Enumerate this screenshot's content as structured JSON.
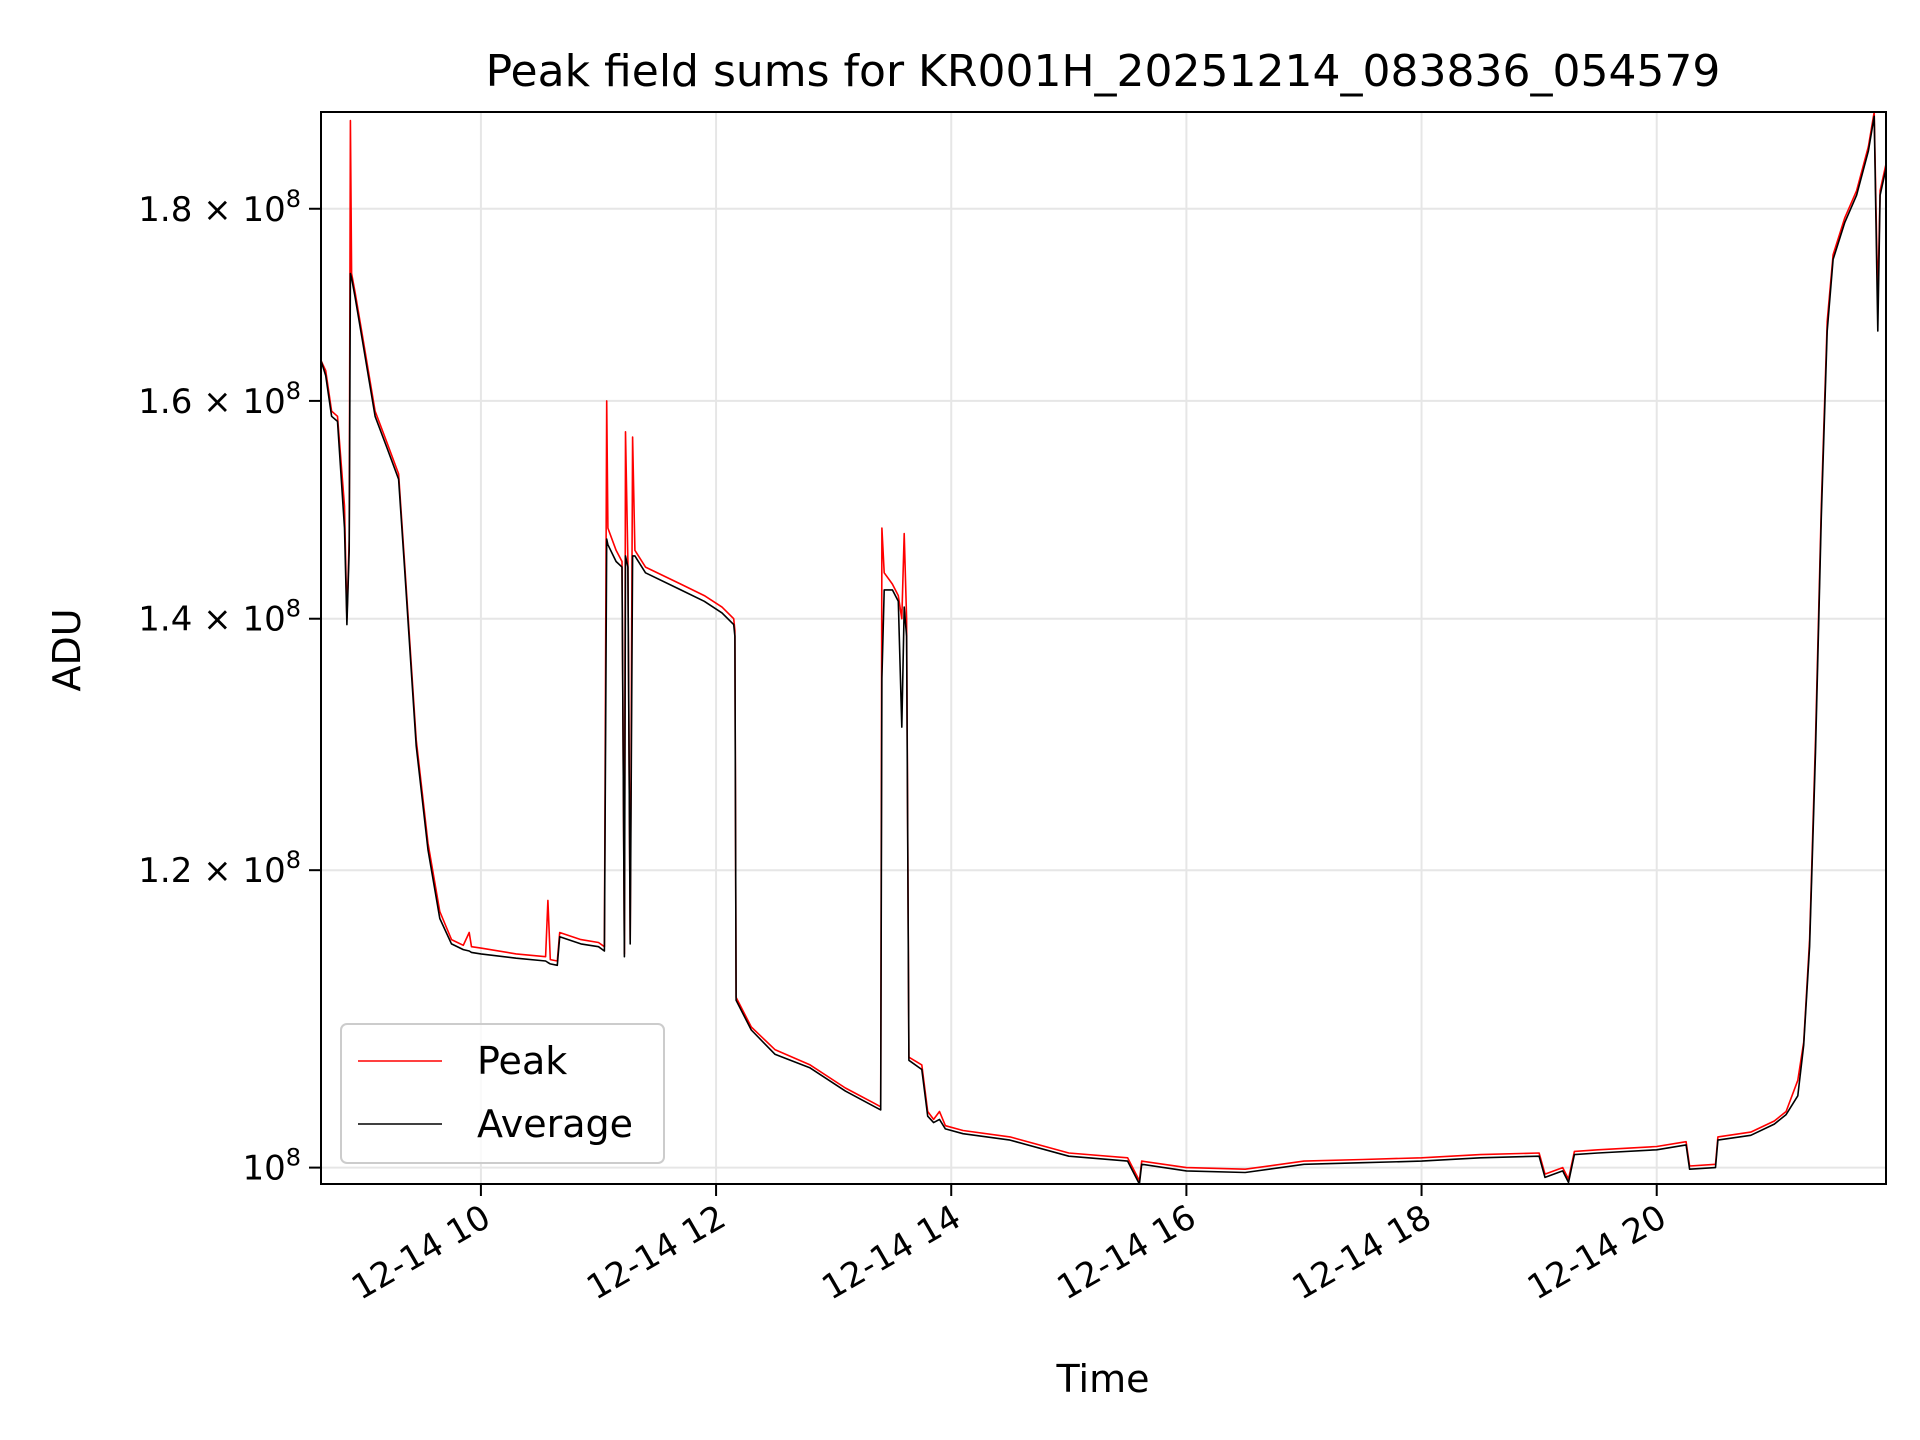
{
  "chart_data": {
    "type": "line",
    "title": "Peak field sums for KR001H_20251214_083836_054579",
    "xlabel": "Time",
    "ylabel": "ADU",
    "grid": true,
    "legend_position": "lower-left",
    "x_unit": "hours since 2025-12-14 00:00",
    "xlim": [
      8.64,
      21.95
    ],
    "y_scale": "log",
    "ylim": [
      99000000,
      191000000
    ],
    "x_ticks": [
      {
        "value": 10,
        "label": "12-14 10"
      },
      {
        "value": 12,
        "label": "12-14 12"
      },
      {
        "value": 14,
        "label": "12-14 14"
      },
      {
        "value": 16,
        "label": "12-14 16"
      },
      {
        "value": 18,
        "label": "12-14 18"
      },
      {
        "value": 20,
        "label": "12-14 20"
      }
    ],
    "y_ticks": [
      {
        "value": 100000000,
        "mant": "10",
        "exp": "8"
      },
      {
        "value": 120000000,
        "mant": "1.2 × 10",
        "exp": "8"
      },
      {
        "value": 140000000,
        "mant": "1.4 × 10",
        "exp": "8"
      },
      {
        "value": 160000000,
        "mant": "1.6 × 10",
        "exp": "8"
      },
      {
        "value": 180000000,
        "mant": "1.8 × 10",
        "exp": "8"
      }
    ],
    "series": [
      {
        "name": "Peak",
        "color": "#ff0000",
        "points": [
          [
            8.64,
            164000000
          ],
          [
            8.68,
            163000000
          ],
          [
            8.73,
            159000000
          ],
          [
            8.78,
            158500000
          ],
          [
            8.84,
            150000000
          ],
          [
            8.86,
            140000000
          ],
          [
            8.88,
            147000000
          ],
          [
            8.89,
            190000000
          ],
          [
            8.9,
            173000000
          ],
          [
            8.93,
            171000000
          ],
          [
            9.0,
            166000000
          ],
          [
            9.1,
            159000000
          ],
          [
            9.2,
            156000000
          ],
          [
            9.3,
            153000000
          ],
          [
            9.35,
            145000000
          ],
          [
            9.45,
            130000000
          ],
          [
            9.55,
            122000000
          ],
          [
            9.65,
            117000000
          ],
          [
            9.75,
            115000000
          ],
          [
            9.85,
            114600000
          ],
          [
            9.9,
            115500000
          ],
          [
            9.92,
            114500000
          ],
          [
            10.0,
            114400000
          ],
          [
            10.3,
            114000000
          ],
          [
            10.55,
            113800000
          ],
          [
            10.57,
            117800000
          ],
          [
            10.59,
            113600000
          ],
          [
            10.65,
            113500000
          ],
          [
            10.67,
            115500000
          ],
          [
            10.85,
            115000000
          ],
          [
            11.0,
            114800000
          ],
          [
            11.05,
            114500000
          ],
          [
            11.07,
            160000000
          ],
          [
            11.08,
            148000000
          ],
          [
            11.15,
            146000000
          ],
          [
            11.2,
            145000000
          ],
          [
            11.22,
            114000000
          ],
          [
            11.23,
            157000000
          ],
          [
            11.25,
            145000000
          ],
          [
            11.27,
            115000000
          ],
          [
            11.29,
            156500000
          ],
          [
            11.31,
            146000000
          ],
          [
            11.4,
            144500000
          ],
          [
            11.7,
            143000000
          ],
          [
            11.9,
            142000000
          ],
          [
            12.05,
            141000000
          ],
          [
            12.15,
            140000000
          ],
          [
            12.16,
            139000000
          ],
          [
            12.17,
            111000000
          ],
          [
            12.3,
            109000000
          ],
          [
            12.5,
            107500000
          ],
          [
            12.8,
            106500000
          ],
          [
            13.1,
            105000000
          ],
          [
            13.35,
            104000000
          ],
          [
            13.4,
            103800000
          ],
          [
            13.41,
            148000000
          ],
          [
            13.43,
            144000000
          ],
          [
            13.5,
            143000000
          ],
          [
            13.55,
            142000000
          ],
          [
            13.58,
            140000000
          ],
          [
            13.6,
            147500000
          ],
          [
            13.62,
            140000000
          ],
          [
            13.64,
            107000000
          ],
          [
            13.75,
            106500000
          ],
          [
            13.8,
            103500000
          ],
          [
            13.85,
            103000000
          ],
          [
            13.9,
            103500000
          ],
          [
            13.95,
            102600000
          ],
          [
            14.1,
            102300000
          ],
          [
            14.5,
            101900000
          ],
          [
            15.0,
            100900000
          ],
          [
            15.5,
            100600000
          ],
          [
            15.6,
            99200000
          ],
          [
            15.62,
            100400000
          ],
          [
            16.0,
            100000000
          ],
          [
            16.5,
            99900000
          ],
          [
            17.0,
            100400000
          ],
          [
            17.5,
            100500000
          ],
          [
            18.0,
            100600000
          ],
          [
            18.5,
            100800000
          ],
          [
            19.0,
            100900000
          ],
          [
            19.05,
            99600000
          ],
          [
            19.2,
            100000000
          ],
          [
            19.25,
            99300000
          ],
          [
            19.3,
            101000000
          ],
          [
            19.5,
            101100000
          ],
          [
            20.0,
            101300000
          ],
          [
            20.25,
            101600000
          ],
          [
            20.28,
            100100000
          ],
          [
            20.5,
            100200000
          ],
          [
            20.52,
            101900000
          ],
          [
            20.8,
            102200000
          ],
          [
            21.0,
            102900000
          ],
          [
            21.1,
            103500000
          ],
          [
            21.2,
            105500000
          ],
          [
            21.25,
            108000000
          ],
          [
            21.3,
            115000000
          ],
          [
            21.35,
            130000000
          ],
          [
            21.4,
            150000000
          ],
          [
            21.45,
            168000000
          ],
          [
            21.5,
            175000000
          ],
          [
            21.6,
            179000000
          ],
          [
            21.7,
            182000000
          ],
          [
            21.8,
            187000000
          ],
          [
            21.85,
            191000000
          ],
          [
            21.88,
            170000000
          ],
          [
            21.9,
            182000000
          ],
          [
            21.95,
            185000000
          ]
        ]
      },
      {
        "name": "Average",
        "color": "#000000",
        "points": [
          [
            8.64,
            164000000
          ],
          [
            8.68,
            162500000
          ],
          [
            8.73,
            158500000
          ],
          [
            8.78,
            158000000
          ],
          [
            8.84,
            148000000
          ],
          [
            8.86,
            139500000
          ],
          [
            8.88,
            146000000
          ],
          [
            8.89,
            173000000
          ],
          [
            8.9,
            172500000
          ],
          [
            8.93,
            170500000
          ],
          [
            9.0,
            165500000
          ],
          [
            9.1,
            158500000
          ],
          [
            9.2,
            155500000
          ],
          [
            9.3,
            152500000
          ],
          [
            9.35,
            144500000
          ],
          [
            9.45,
            129500000
          ],
          [
            9.55,
            121500000
          ],
          [
            9.65,
            116500000
          ],
          [
            9.75,
            114700000
          ],
          [
            9.85,
            114300000
          ],
          [
            9.9,
            114200000
          ],
          [
            9.92,
            114100000
          ],
          [
            10.0,
            114000000
          ],
          [
            10.3,
            113700000
          ],
          [
            10.55,
            113500000
          ],
          [
            10.57,
            113400000
          ],
          [
            10.59,
            113300000
          ],
          [
            10.65,
            113200000
          ],
          [
            10.67,
            115200000
          ],
          [
            10.85,
            114700000
          ],
          [
            11.0,
            114500000
          ],
          [
            11.05,
            114200000
          ],
          [
            11.07,
            147000000
          ],
          [
            11.08,
            146500000
          ],
          [
            11.15,
            145000000
          ],
          [
            11.2,
            144500000
          ],
          [
            11.22,
            113800000
          ],
          [
            11.23,
            145500000
          ],
          [
            11.25,
            144500000
          ],
          [
            11.27,
            114700000
          ],
          [
            11.29,
            145500000
          ],
          [
            11.31,
            145500000
          ],
          [
            11.4,
            144000000
          ],
          [
            11.7,
            142500000
          ],
          [
            11.9,
            141500000
          ],
          [
            12.05,
            140500000
          ],
          [
            12.15,
            139500000
          ],
          [
            12.16,
            138500000
          ],
          [
            12.17,
            110800000
          ],
          [
            12.3,
            108800000
          ],
          [
            12.5,
            107200000
          ],
          [
            12.8,
            106300000
          ],
          [
            13.1,
            104800000
          ],
          [
            13.35,
            103800000
          ],
          [
            13.4,
            103600000
          ],
          [
            13.41,
            135000000
          ],
          [
            13.43,
            142500000
          ],
          [
            13.5,
            142500000
          ],
          [
            13.55,
            141500000
          ],
          [
            13.58,
            131000000
          ],
          [
            13.6,
            141000000
          ],
          [
            13.62,
            138500000
          ],
          [
            13.64,
            106800000
          ],
          [
            13.75,
            106200000
          ],
          [
            13.8,
            103200000
          ],
          [
            13.85,
            102800000
          ],
          [
            13.9,
            103000000
          ],
          [
            13.95,
            102400000
          ],
          [
            14.1,
            102100000
          ],
          [
            14.5,
            101700000
          ],
          [
            15.0,
            100700000
          ],
          [
            15.5,
            100400000
          ],
          [
            15.6,
            99000000
          ],
          [
            15.62,
            100200000
          ],
          [
            16.0,
            99800000
          ],
          [
            16.5,
            99700000
          ],
          [
            17.0,
            100200000
          ],
          [
            17.5,
            100300000
          ],
          [
            18.0,
            100400000
          ],
          [
            18.5,
            100600000
          ],
          [
            19.0,
            100700000
          ],
          [
            19.05,
            99400000
          ],
          [
            19.2,
            99800000
          ],
          [
            19.25,
            99100000
          ],
          [
            19.3,
            100800000
          ],
          [
            19.5,
            100900000
          ],
          [
            20.0,
            101100000
          ],
          [
            20.25,
            101400000
          ],
          [
            20.28,
            99900000
          ],
          [
            20.5,
            100000000
          ],
          [
            20.52,
            101700000
          ],
          [
            20.8,
            102000000
          ],
          [
            21.0,
            102700000
          ],
          [
            21.1,
            103300000
          ],
          [
            21.2,
            104500000
          ],
          [
            21.25,
            107800000
          ],
          [
            21.3,
            114500000
          ],
          [
            21.35,
            129000000
          ],
          [
            21.4,
            149000000
          ],
          [
            21.45,
            167000000
          ],
          [
            21.5,
            174500000
          ],
          [
            21.6,
            178500000
          ],
          [
            21.7,
            181500000
          ],
          [
            21.8,
            186500000
          ],
          [
            21.85,
            190500000
          ],
          [
            21.88,
            167000000
          ],
          [
            21.9,
            181500000
          ],
          [
            21.95,
            184500000
          ]
        ]
      }
    ]
  }
}
